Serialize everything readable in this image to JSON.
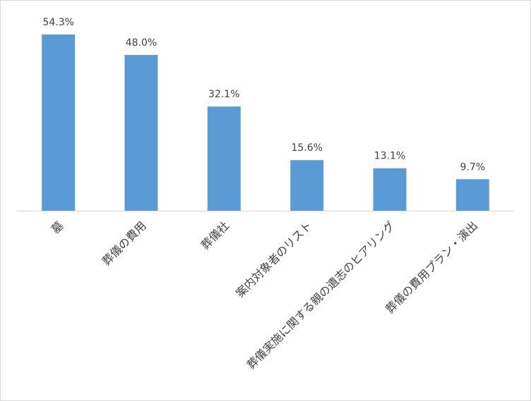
{
  "chart_data": {
    "type": "bar",
    "categories": [
      "墓",
      "葬儀の費用",
      "葬儀社",
      "案内対象者のリスト",
      "葬儀実施に関する親の遺志のヒアリング",
      "葬儀の費用プラン・演出"
    ],
    "values": [
      54.3,
      48.0,
      32.1,
      15.6,
      13.1,
      9.7
    ],
    "data_labels": [
      "54.3%",
      "48.0%",
      "32.1%",
      "15.6%",
      "13.1%",
      "9.7%"
    ],
    "unit": "%",
    "ylim": [
      0,
      60
    ],
    "grid": false,
    "legend": "none",
    "bar_color": "#5b9bd5",
    "axis_color": "#d9d9d9",
    "text_color": "#404040"
  }
}
